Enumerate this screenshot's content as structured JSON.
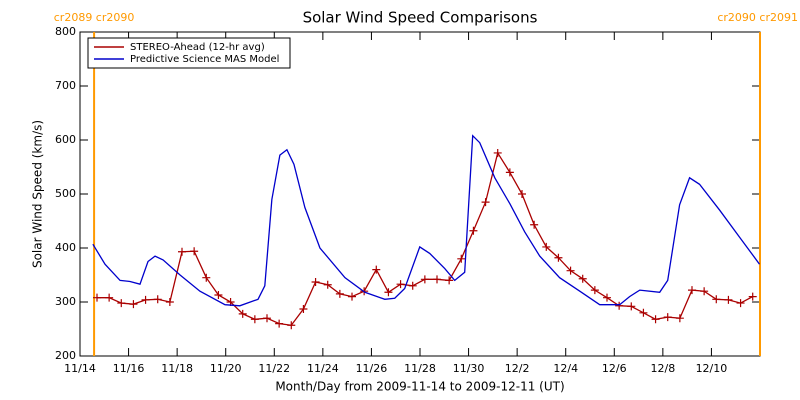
{
  "chart_data": {
    "type": "line",
    "title": "Solar Wind Speed Comparisons",
    "xlabel": "Month/Day from 2009-11-14 to 2009-12-11 (UT)",
    "ylabel": "Solar Wind Speed (km/s)",
    "xlim": [
      0,
      28
    ],
    "ylim": [
      200,
      800
    ],
    "xticks": [
      {
        "value": 0,
        "label": "11/14"
      },
      {
        "value": 2,
        "label": "11/16"
      },
      {
        "value": 4,
        "label": "11/18"
      },
      {
        "value": 6,
        "label": "11/20"
      },
      {
        "value": 8,
        "label": "11/22"
      },
      {
        "value": 10,
        "label": "11/24"
      },
      {
        "value": 12,
        "label": "11/26"
      },
      {
        "value": 14,
        "label": "11/28"
      },
      {
        "value": 16,
        "label": "11/30"
      },
      {
        "value": 18,
        "label": "12/2"
      },
      {
        "value": 20,
        "label": "12/4"
      },
      {
        "value": 22,
        "label": "12/6"
      },
      {
        "value": 24,
        "label": "12/8"
      },
      {
        "value": 26,
        "label": "12/10"
      }
    ],
    "yticks": [
      200,
      300,
      400,
      500,
      600,
      700,
      800
    ],
    "legend": "upper left",
    "annotations": [
      {
        "text": "cr2089 cr2090",
        "x": 0.58,
        "color": "#ff9900"
      },
      {
        "text": "cr2090 cr2091",
        "x": 28,
        "color": "#ff9900"
      }
    ],
    "series": [
      {
        "name": "STEREO-Ahead (12-hr avg)",
        "color": "#aa0000",
        "markers": true,
        "x": [
          0.7,
          1.2,
          1.7,
          2.2,
          2.7,
          3.2,
          3.7,
          4.2,
          4.7,
          5.2,
          5.7,
          6.2,
          6.7,
          7.2,
          7.7,
          8.2,
          8.7,
          9.2,
          9.7,
          10.2,
          10.7,
          11.2,
          11.7,
          12.2,
          12.7,
          13.2,
          13.7,
          14.2,
          14.7,
          15.2,
          15.7,
          16.2,
          16.7,
          17.2,
          17.7,
          18.2,
          18.7,
          19.2,
          19.7,
          20.2,
          20.7,
          21.2,
          21.7,
          22.2,
          22.7,
          23.2,
          23.7,
          24.2,
          24.7,
          25.2,
          25.7,
          26.2,
          26.7,
          27.2,
          27.7
        ],
        "values": [
          308,
          308,
          298,
          296,
          304,
          305,
          300,
          393,
          394,
          345,
          313,
          300,
          278,
          268,
          270,
          260,
          257,
          287,
          337,
          332,
          315,
          310,
          320,
          360,
          318,
          333,
          330,
          342,
          342,
          340,
          380,
          432,
          485,
          576,
          540,
          500,
          443,
          402,
          382,
          358,
          343,
          322,
          308,
          293,
          292,
          280,
          268,
          272,
          270,
          322,
          320,
          305,
          304,
          298,
          310
        ]
      },
      {
        "name": "Predictive Science MAS Model",
        "color": "#0000cc",
        "markers": false,
        "x": [
          0.53,
          1.03,
          1.65,
          2.06,
          2.47,
          2.8,
          3.09,
          3.42,
          4.12,
          4.94,
          5.97,
          6.58,
          7.33,
          7.61,
          7.9,
          8.23,
          8.52,
          8.81,
          9.26,
          9.88,
          10.91,
          11.73,
          12.55,
          12.96,
          13.37,
          13.99,
          14.4,
          15.02,
          15.43,
          15.84,
          16.17,
          16.46,
          17.08,
          17.7,
          18.31,
          18.93,
          19.75,
          20.58,
          21.4,
          22.22,
          22.63,
          23.05,
          23.87,
          24.2,
          24.69,
          25.1,
          25.51,
          26.34,
          27.16,
          27.98
        ],
        "values": [
          407,
          370,
          340,
          338,
          333,
          375,
          385,
          378,
          350,
          320,
          295,
          293,
          305,
          330,
          490,
          572,
          582,
          555,
          475,
          400,
          345,
          318,
          305,
          307,
          325,
          402,
          390,
          362,
          340,
          355,
          608,
          595,
          530,
          482,
          430,
          385,
          345,
          320,
          295,
          295,
          310,
          322,
          318,
          340,
          480,
          530,
          518,
          470,
          420,
          370
        ]
      }
    ]
  }
}
